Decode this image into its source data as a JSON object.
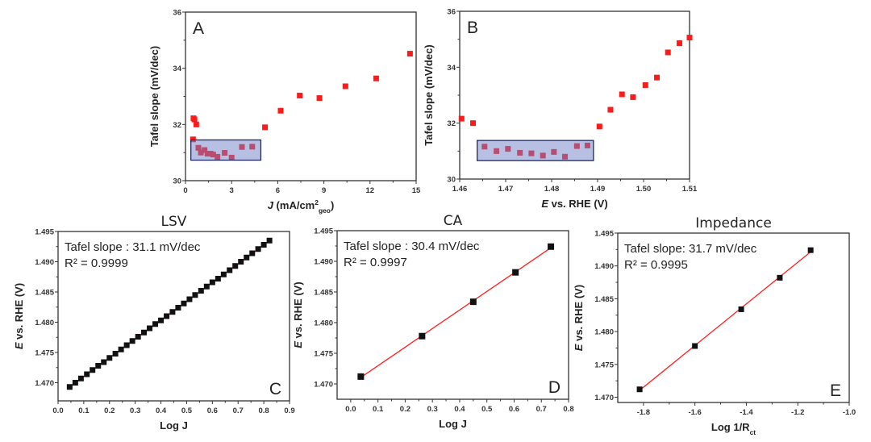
{
  "chart_data": [
    {
      "panel": "A",
      "type": "scatter",
      "title": "",
      "xlabel_parts": [
        {
          "t": "J",
          "s": "italic"
        },
        {
          "t": " (mA/cm",
          "s": ""
        },
        {
          "t": "2",
          "s": "sup"
        },
        {
          "t": "geo",
          "s": "sub"
        },
        {
          "t": ")",
          "s": ""
        }
      ],
      "ylabel": "Tafel slope (mV/dec)",
      "xlim": [
        0,
        15
      ],
      "ylim": [
        30,
        36
      ],
      "xticks": [
        0,
        3,
        6,
        9,
        12,
        15
      ],
      "xtick_labels": [
        "0",
        "3",
        "6",
        "9",
        "12",
        "15"
      ],
      "yticks": [
        30,
        32,
        34,
        36
      ],
      "ytick_labels": [
        "30",
        "32",
        "34",
        "36"
      ],
      "marker_color": "#ff1a1a",
      "x": [
        0.49,
        0.52,
        0.58,
        0.7,
        0.84,
        1.0,
        1.24,
        1.43,
        1.63,
        1.8,
        2.08,
        2.55,
        3.0,
        3.67,
        4.34,
        5.17,
        6.19,
        7.43,
        8.71,
        10.4,
        12.4,
        14.6
      ],
      "y": [
        31.47,
        32.22,
        32.18,
        32.0,
        31.17,
        31.0,
        31.09,
        30.96,
        30.96,
        30.93,
        30.85,
        30.99,
        30.82,
        31.2,
        31.21,
        31.9,
        32.49,
        33.03,
        32.94,
        33.36,
        33.64,
        34.52
      ],
      "highlight_box": {
        "x": [
          0.35,
          4.9
        ],
        "y": [
          30.73,
          31.45
        ],
        "fill": "#6f80c8",
        "stroke": "#1f2a60"
      }
    },
    {
      "panel": "B",
      "type": "scatter",
      "title": "",
      "xlabel_parts": [
        {
          "t": "E",
          "s": "italic"
        },
        {
          "t": " vs. RHE (V)",
          "s": ""
        }
      ],
      "ylabel": "Tafel slope (mV/dec)",
      "xlim": [
        1.46,
        1.51
      ],
      "ylim": [
        30,
        36
      ],
      "xticks": [
        1.46,
        1.47,
        1.48,
        1.49,
        1.5,
        1.51
      ],
      "xtick_labels": [
        "1.46",
        "1.47",
        "1.48",
        "1.49",
        "1.50",
        "1.51"
      ],
      "yticks": [
        30,
        32,
        34,
        36
      ],
      "ytick_labels": [
        "30",
        "32",
        "34",
        "36"
      ],
      "marker_color": "#ff1a1a",
      "x": [
        1.4604,
        1.4629,
        1.4654,
        1.468,
        1.4705,
        1.4731,
        1.4756,
        1.4781,
        1.4805,
        1.4829,
        1.4855,
        1.4878,
        1.4904,
        1.4928,
        1.4953,
        1.4977,
        1.5004,
        1.5029,
        1.5053,
        1.5078,
        1.51
      ],
      "y": [
        32.16,
        32.0,
        31.16,
        31.0,
        31.08,
        30.94,
        30.92,
        30.84,
        30.97,
        30.8,
        31.18,
        31.2,
        31.88,
        32.48,
        33.03,
        32.93,
        33.36,
        33.63,
        34.53,
        34.86,
        35.06
      ],
      "highlight_box": {
        "x": [
          1.4638,
          1.4891
        ],
        "y": [
          30.66,
          31.38
        ],
        "fill": "#6f80c8",
        "stroke": "#1f2a60"
      }
    },
    {
      "panel": "C",
      "type": "scatter",
      "title": "LSV",
      "annotation": [
        "Tafel slope : 31.1 mV/dec",
        "R² = 0.9999"
      ],
      "xlabel_parts": [
        {
          "t": "Log J",
          "s": ""
        }
      ],
      "ylabel_parts": [
        {
          "t": "E",
          "s": "italic"
        },
        {
          "t": " vs. RHE (V)",
          "s": ""
        }
      ],
      "xlim": [
        0,
        0.9
      ],
      "ylim": [
        1.467,
        1.495
      ],
      "xticks": [
        0,
        0.1,
        0.2,
        0.3,
        0.4,
        0.5,
        0.6,
        0.7,
        0.8,
        0.9
      ],
      "xtick_labels": [
        "0.0",
        "0.1",
        "0.2",
        "0.3",
        "0.4",
        "0.5",
        "0.6",
        "0.7",
        "0.8",
        "0.9"
      ],
      "yticks": [
        1.47,
        1.475,
        1.48,
        1.485,
        1.49,
        1.495
      ],
      "ytick_labels": [
        "1.470",
        "1.475",
        "1.480",
        "1.485",
        "1.490",
        "1.495"
      ],
      "marker_color": "#111111",
      "fit_color": "#ff2020",
      "x": [
        0.045,
        0.067,
        0.089,
        0.112,
        0.134,
        0.156,
        0.178,
        0.2,
        0.223,
        0.245,
        0.267,
        0.289,
        0.311,
        0.334,
        0.356,
        0.378,
        0.4,
        0.422,
        0.445,
        0.467,
        0.489,
        0.511,
        0.533,
        0.556,
        0.578,
        0.6,
        0.622,
        0.644,
        0.667,
        0.689,
        0.711,
        0.733,
        0.755,
        0.778,
        0.8,
        0.822
      ],
      "y": [
        1.4693,
        1.47,
        1.4707,
        1.4714,
        1.4721,
        1.4728,
        1.4734,
        1.4741,
        1.4748,
        1.4755,
        1.4762,
        1.4769,
        1.4776,
        1.4783,
        1.479,
        1.4797,
        1.4803,
        1.481,
        1.4817,
        1.4824,
        1.4831,
        1.4838,
        1.4845,
        1.4852,
        1.4859,
        1.4866,
        1.4872,
        1.4879,
        1.4886,
        1.4893,
        1.49,
        1.4907,
        1.4914,
        1.4921,
        1.4928,
        1.4935
      ]
    },
    {
      "panel": "D",
      "type": "scatter",
      "title": "CA",
      "annotation": [
        "Tafel slope : 30.4 mV/dec",
        "R² = 0.9997"
      ],
      "xlabel_parts": [
        {
          "t": "Log J",
          "s": ""
        }
      ],
      "ylabel_parts": [
        {
          "t": "E",
          "s": "italic"
        },
        {
          "t": " vs. RHE (V)",
          "s": ""
        }
      ],
      "xlim": [
        -0.05,
        0.8
      ],
      "ylim": [
        1.4675,
        1.495
      ],
      "xticks": [
        0,
        0.1,
        0.2,
        0.3,
        0.4,
        0.5,
        0.6,
        0.7,
        0.8
      ],
      "xtick_labels": [
        "0.0",
        "0.1",
        "0.2",
        "0.3",
        "0.4",
        "0.5",
        "0.6",
        "0.7",
        "0.8"
      ],
      "yticks": [
        1.47,
        1.475,
        1.48,
        1.485,
        1.49,
        1.495
      ],
      "ytick_labels": [
        "1.470",
        "1.475",
        "1.480",
        "1.485",
        "1.490",
        "1.495"
      ],
      "marker_color": "#111111",
      "fit_color": "#ff2020",
      "x": [
        0.037,
        0.262,
        0.45,
        0.605,
        0.735
      ],
      "y": [
        1.4712,
        1.4778,
        1.4834,
        1.4882,
        1.4924
      ]
    },
    {
      "panel": "E",
      "type": "scatter",
      "title": "Impedance",
      "annotation": [
        "Tafel slope: 31.7 mV/dec",
        "R² = 0.9995"
      ],
      "xlabel_parts": [
        {
          "t": "Log 1/R",
          "s": ""
        },
        {
          "t": "ct",
          "s": "sub"
        }
      ],
      "ylabel_parts": [
        {
          "t": "E",
          "s": "italic"
        },
        {
          "t": " vs. RHE (V)",
          "s": ""
        }
      ],
      "xlim": [
        -1.9,
        -1.0
      ],
      "ylim": [
        1.4692,
        1.495
      ],
      "xticks": [
        -1.8,
        -1.6,
        -1.4,
        -1.2,
        -1.0
      ],
      "xtick_labels": [
        "-1.8",
        "-1.6",
        "-1.4",
        "-1.2",
        "-1.0"
      ],
      "yticks": [
        1.47,
        1.475,
        1.48,
        1.485,
        1.49,
        1.495
      ],
      "ytick_labels": [
        "1.470",
        "1.475",
        "1.480",
        "1.485",
        "1.490",
        "1.495"
      ],
      "marker_color": "#111111",
      "fit_color": "#ff2020",
      "x": [
        -1.815,
        -1.6,
        -1.42,
        -1.27,
        -1.15
      ],
      "y": [
        1.4712,
        1.4778,
        1.4834,
        1.4882,
        1.4924
      ]
    }
  ]
}
